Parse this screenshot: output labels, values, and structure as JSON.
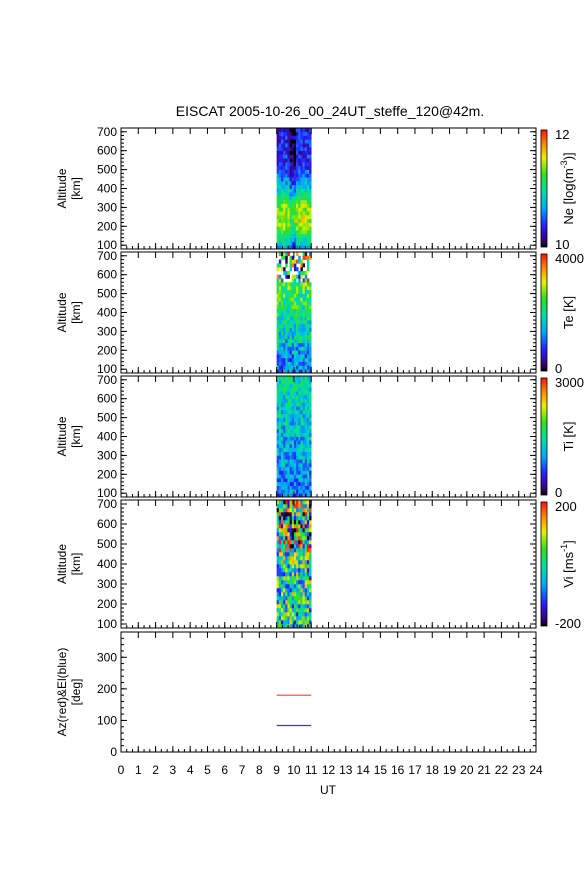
{
  "title": "EISCAT 2005-10-26_00_24UT_steffe_120@42m.",
  "chart_data": {
    "type": "heatmap",
    "title": "EISCAT 2005-10-26_00_24UT_steffe_120@42m.",
    "xlabel": "UT",
    "xlim": [
      0,
      24
    ],
    "xticks": [
      "0",
      "1",
      "2",
      "3",
      "4",
      "5",
      "6",
      "7",
      "8",
      "9",
      "10",
      "11",
      "12",
      "13",
      "14",
      "15",
      "16",
      "17",
      "18",
      "19",
      "20",
      "21",
      "22",
      "23",
      "24"
    ],
    "data_time_range": [
      9.0,
      11.0
    ],
    "panels": [
      {
        "id": "ne",
        "ylabel": [
          "Altitude",
          "[km]"
        ],
        "ylim": [
          80,
          720
        ],
        "yticks": [
          "100",
          "200",
          "300",
          "400",
          "500",
          "600",
          "700"
        ],
        "colorbar_label_parts": [
          "Ne [log(m",
          "-3",
          ")]"
        ],
        "colorbar_ticks": [
          "12",
          "10"
        ],
        "color_range": [
          10,
          12
        ],
        "colormap": "rainbow"
      },
      {
        "id": "te",
        "ylabel": [
          "Altitude",
          "[km]"
        ],
        "ylim": [
          80,
          720
        ],
        "yticks": [
          "100",
          "200",
          "300",
          "400",
          "500",
          "600",
          "700"
        ],
        "colorbar_label_parts": [
          "Te [K]"
        ],
        "colorbar_ticks": [
          "4000",
          "0"
        ],
        "color_range": [
          0,
          4000
        ],
        "colormap": "rainbow"
      },
      {
        "id": "ti",
        "ylabel": [
          "Altitude",
          "[km]"
        ],
        "ylim": [
          80,
          720
        ],
        "yticks": [
          "100",
          "200",
          "300",
          "400",
          "500",
          "600",
          "700"
        ],
        "colorbar_label_parts": [
          "Ti [K]"
        ],
        "colorbar_ticks": [
          "3000",
          "0"
        ],
        "color_range": [
          0,
          3000
        ],
        "colormap": "rainbow"
      },
      {
        "id": "vi",
        "ylabel": [
          "Altitude",
          "[km]"
        ],
        "ylim": [
          80,
          720
        ],
        "yticks": [
          "100",
          "200",
          "300",
          "400",
          "500",
          "600",
          "700"
        ],
        "colorbar_label_parts": [
          "Vi [ms",
          "-1",
          "]"
        ],
        "colorbar_ticks": [
          "200",
          "-200"
        ],
        "color_range": [
          -200,
          200
        ],
        "colormap": "rainbow"
      }
    ],
    "angle_panel": {
      "ylabel": [
        "Az(red)&El(blue)",
        "[deg]"
      ],
      "ylim": [
        0,
        380
      ],
      "yticks": [
        "0",
        "100",
        "200",
        "300"
      ],
      "series": [
        {
          "x": [
            9.0,
            11.0
          ],
          "values": [
            180,
            180
          ],
          "color": "#ff3b1f"
        },
        {
          "x": [
            9.0,
            11.0
          ],
          "values": [
            84,
            84
          ],
          "color": "#3a2cff"
        }
      ]
    },
    "grid": false,
    "colors": {
      "axis": "#000000",
      "background": "#ffffff"
    }
  }
}
